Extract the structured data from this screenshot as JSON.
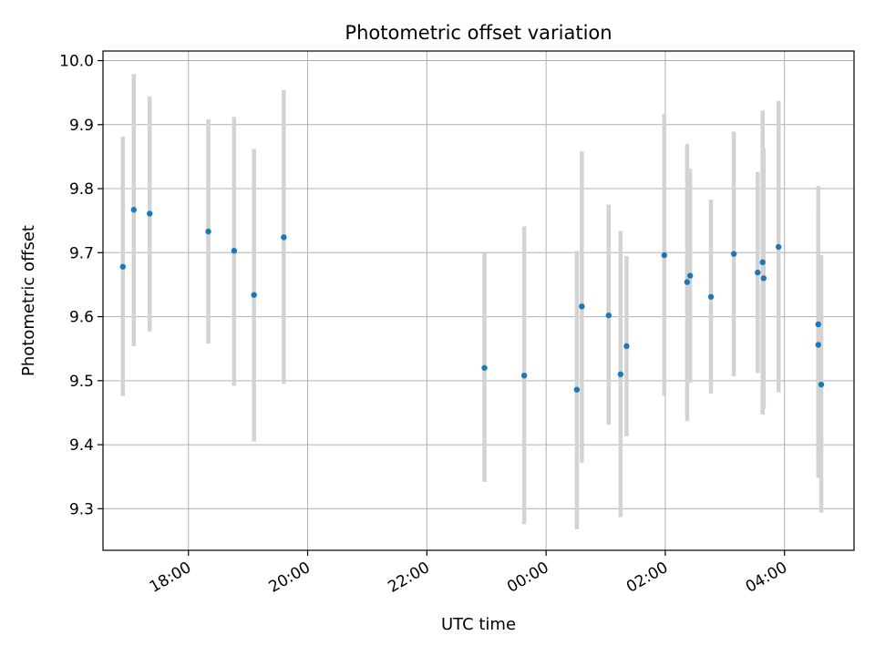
{
  "chart_data": {
    "type": "scatter",
    "title": "Photometric offset variation",
    "xlabel": "UTC time",
    "ylabel": "Photometric offset",
    "x_axis_type": "time",
    "xlim": [
      "16:34",
      "05:10 (+1 day)"
    ],
    "ylim": [
      9.235,
      10.015
    ],
    "x_ticks": [
      "18:00",
      "20:00",
      "22:00",
      "00:00",
      "02:00",
      "04:00"
    ],
    "y_ticks": [
      "10.0",
      "9.9",
      "9.8",
      "9.7",
      "9.6",
      "9.5",
      "9.4",
      "9.3"
    ],
    "grid": true,
    "legend": "none",
    "marker_color": "#1f77b4",
    "errorbar_color": "#d3d3d3",
    "points": [
      {
        "time": "16:54",
        "y": 9.678,
        "ylow": 9.476,
        "yhigh": 9.881
      },
      {
        "time": "17:05",
        "y": 9.767,
        "ylow": 9.554,
        "yhigh": 9.979
      },
      {
        "time": "17:21",
        "y": 9.761,
        "ylow": 9.577,
        "yhigh": 9.944
      },
      {
        "time": "18:20",
        "y": 9.733,
        "ylow": 9.558,
        "yhigh": 9.908
      },
      {
        "time": "18:46",
        "y": 9.703,
        "ylow": 9.492,
        "yhigh": 9.912
      },
      {
        "time": "19:06",
        "y": 9.634,
        "ylow": 9.405,
        "yhigh": 9.862
      },
      {
        "time": "19:36",
        "y": 9.724,
        "ylow": 9.495,
        "yhigh": 9.954
      },
      {
        "time": "22:58",
        "y": 9.52,
        "ylow": 9.342,
        "yhigh": 9.699
      },
      {
        "time": "23:38",
        "y": 9.508,
        "ylow": 9.276,
        "yhigh": 9.741
      },
      {
        "time": "00:31",
        "y": 9.486,
        "ylow": 9.268,
        "yhigh": 9.703
      },
      {
        "time": "00:36",
        "y": 9.616,
        "ylow": 9.372,
        "yhigh": 9.858
      },
      {
        "time": "01:03",
        "y": 9.602,
        "ylow": 9.431,
        "yhigh": 9.775
      },
      {
        "time": "01:15",
        "y": 9.51,
        "ylow": 9.287,
        "yhigh": 9.734
      },
      {
        "time": "01:21",
        "y": 9.554,
        "ylow": 9.413,
        "yhigh": 9.695
      },
      {
        "time": "01:59",
        "y": 9.696,
        "ylow": 9.476,
        "yhigh": 9.917
      },
      {
        "time": "02:22",
        "y": 9.654,
        "ylow": 9.437,
        "yhigh": 9.87
      },
      {
        "time": "02:25",
        "y": 9.664,
        "ylow": 9.497,
        "yhigh": 9.831
      },
      {
        "time": "02:46",
        "y": 9.631,
        "ylow": 9.48,
        "yhigh": 9.783
      },
      {
        "time": "03:09",
        "y": 9.698,
        "ylow": 9.507,
        "yhigh": 9.889
      },
      {
        "time": "03:33",
        "y": 9.669,
        "ylow": 9.512,
        "yhigh": 9.826
      },
      {
        "time": "03:38",
        "y": 9.685,
        "ylow": 9.447,
        "yhigh": 9.922
      },
      {
        "time": "03:39",
        "y": 9.66,
        "ylow": 9.456,
        "yhigh": 9.863
      },
      {
        "time": "03:54",
        "y": 9.709,
        "ylow": 9.482,
        "yhigh": 9.937
      },
      {
        "time": "04:34",
        "y": 9.588,
        "ylow": 9.373,
        "yhigh": 9.804
      },
      {
        "time": "04:34",
        "y": 9.556,
        "ylow": 9.348,
        "yhigh": 9.765
      },
      {
        "time": "04:37",
        "y": 9.494,
        "ylow": 9.294,
        "yhigh": 9.696
      }
    ]
  }
}
